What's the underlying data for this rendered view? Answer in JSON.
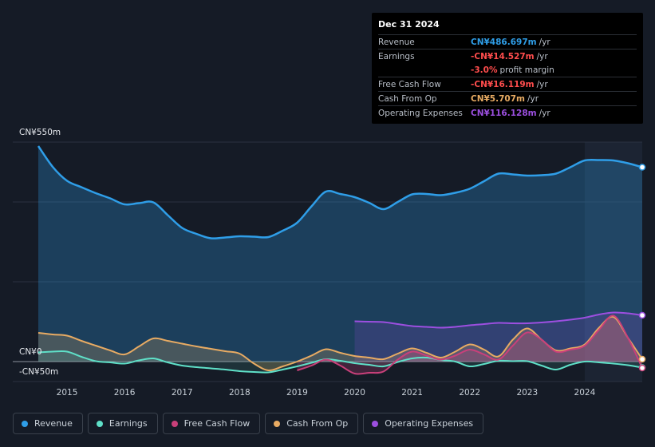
{
  "tooltip": {
    "date": "Dec 31 2024",
    "rows": {
      "revenue": {
        "label": "Revenue",
        "value": "CN¥486.697m",
        "unit": "/yr"
      },
      "earnings": {
        "label": "Earnings",
        "value": "-CN¥14.527m",
        "unit": "/yr"
      },
      "margin": {
        "value": "-3.0%",
        "text": "profit margin"
      },
      "fcf": {
        "label": "Free Cash Flow",
        "value": "-CN¥16.119m",
        "unit": "/yr"
      },
      "cfo": {
        "label": "Cash From Op",
        "value": "CN¥5.707m",
        "unit": "/yr"
      },
      "opex": {
        "label": "Operating Expenses",
        "value": "CN¥116.128m",
        "unit": "/yr"
      }
    }
  },
  "legend": {
    "revenue": "Revenue",
    "earnings": "Earnings",
    "fcf": "Free Cash Flow",
    "cfo": "Cash From Op",
    "opex": "Operating Expenses"
  },
  "colors": {
    "revenue": "#2f9ee8",
    "earnings": "#5fe0c8",
    "fcf": "#c9407a",
    "cfo": "#e8ab63",
    "opex": "#9c4fe0",
    "negative": "#ff4d4d"
  },
  "chart_data": {
    "type": "area",
    "y_unit": "CN¥ m",
    "ylim": [
      -50,
      550
    ],
    "y_tick_labels": [
      {
        "value": 550,
        "label": "CN¥550m"
      },
      {
        "value": 0,
        "label": "CN¥0"
      },
      {
        "value": -50,
        "label": "-CN¥50m"
      }
    ],
    "xlim": [
      2014.5,
      2025.0
    ],
    "x_ticks": [
      "2015",
      "2016",
      "2017",
      "2018",
      "2019",
      "2020",
      "2021",
      "2022",
      "2023",
      "2024"
    ],
    "highlight_from": 2024.0,
    "series": [
      {
        "name": "Revenue",
        "key": "revenue",
        "x": [
          2014.5,
          2014.75,
          2015.0,
          2015.25,
          2015.5,
          2015.75,
          2016.0,
          2016.25,
          2016.5,
          2016.75,
          2017.0,
          2017.25,
          2017.5,
          2017.75,
          2018.0,
          2018.25,
          2018.5,
          2018.75,
          2019.0,
          2019.25,
          2019.5,
          2019.75,
          2020.0,
          2020.25,
          2020.5,
          2020.75,
          2021.0,
          2021.25,
          2021.5,
          2021.75,
          2022.0,
          2022.25,
          2022.5,
          2022.75,
          2023.0,
          2023.25,
          2023.5,
          2023.75,
          2024.0,
          2024.25,
          2024.5,
          2024.75,
          2025.0
        ],
        "values": [
          540,
          488,
          453,
          437,
          422,
          409,
          394,
          397,
          399,
          367,
          335,
          320,
          309,
          311,
          314,
          313,
          312,
          328,
          348,
          389,
          426,
          420,
          412,
          398,
          382,
          400,
          419,
          420,
          417,
          423,
          433,
          452,
          471,
          469,
          466,
          467,
          471,
          487,
          504,
          505,
          504,
          497,
          487
        ]
      },
      {
        "name": "Earnings",
        "key": "earnings",
        "x": [
          2014.5,
          2014.75,
          2015.0,
          2015.25,
          2015.5,
          2015.75,
          2016.0,
          2016.25,
          2016.5,
          2016.75,
          2017.0,
          2017.25,
          2017.5,
          2017.75,
          2018.0,
          2018.25,
          2018.5,
          2018.75,
          2019.0,
          2019.25,
          2019.5,
          2019.75,
          2020.0,
          2020.25,
          2020.5,
          2020.75,
          2021.0,
          2021.25,
          2021.5,
          2021.75,
          2022.0,
          2022.25,
          2022.5,
          2022.75,
          2023.0,
          2023.25,
          2023.5,
          2023.75,
          2024.0,
          2024.25,
          2024.5,
          2024.75,
          2025.0
        ],
        "values": [
          23,
          25,
          25,
          12,
          1,
          -2,
          -5,
          3,
          8,
          -2,
          -10,
          -14,
          -17,
          -20,
          -24,
          -26,
          -27,
          -20,
          -12,
          -3,
          6,
          2,
          -4,
          -8,
          -12,
          -1,
          8,
          10,
          4,
          0,
          -12,
          -6,
          2,
          1,
          1,
          -10,
          -20,
          -8,
          0,
          -2,
          -5,
          -9,
          -15
        ]
      },
      {
        "name": "Free Cash Flow",
        "key": "fcf",
        "x": [
          2019.0,
          2019.25,
          2019.5,
          2019.75,
          2020.0,
          2020.25,
          2020.5,
          2020.75,
          2021.0,
          2021.25,
          2021.5,
          2021.75,
          2022.0,
          2022.25,
          2022.5,
          2022.75,
          2023.0,
          2023.25,
          2023.5,
          2023.75,
          2024.0,
          2024.25,
          2024.5,
          2024.75,
          2025.0
        ],
        "values": [
          -22,
          -10,
          5,
          -10,
          -30,
          -28,
          -25,
          5,
          25,
          15,
          5,
          15,
          30,
          18,
          5,
          40,
          73,
          55,
          25,
          30,
          40,
          80,
          115,
          60,
          -16
        ]
      },
      {
        "name": "Cash From Op",
        "key": "cfo",
        "x": [
          2014.5,
          2014.75,
          2015.0,
          2015.25,
          2015.5,
          2015.75,
          2016.0,
          2016.25,
          2016.5,
          2016.75,
          2017.0,
          2017.25,
          2017.5,
          2017.75,
          2018.0,
          2018.25,
          2018.5,
          2018.75,
          2019.0,
          2019.25,
          2019.5,
          2019.75,
          2020.0,
          2020.25,
          2020.5,
          2020.75,
          2021.0,
          2021.25,
          2021.5,
          2021.75,
          2022.0,
          2022.25,
          2022.5,
          2022.75,
          2023.0,
          2023.25,
          2023.5,
          2023.75,
          2024.0,
          2024.25,
          2024.5,
          2024.75,
          2025.0
        ],
        "values": [
          72,
          68,
          65,
          52,
          40,
          28,
          18,
          38,
          58,
          52,
          45,
          38,
          32,
          26,
          20,
          -5,
          -22,
          -12,
          0,
          15,
          31,
          22,
          14,
          10,
          6,
          20,
          33,
          22,
          10,
          25,
          43,
          30,
          13,
          55,
          83,
          55,
          28,
          33,
          43,
          85,
          112,
          60,
          6
        ]
      },
      {
        "name": "Operating Expenses",
        "key": "opex",
        "x": [
          2020.0,
          2020.25,
          2020.5,
          2020.75,
          2021.0,
          2021.25,
          2021.5,
          2021.75,
          2022.0,
          2022.25,
          2022.5,
          2022.75,
          2023.0,
          2023.25,
          2023.5,
          2023.75,
          2024.0,
          2024.25,
          2024.5,
          2024.75,
          2025.0
        ],
        "values": [
          101,
          100,
          99,
          94,
          89,
          87,
          85,
          87,
          91,
          94,
          97,
          96,
          96,
          98,
          101,
          105,
          110,
          118,
          123,
          121,
          116
        ]
      }
    ]
  }
}
